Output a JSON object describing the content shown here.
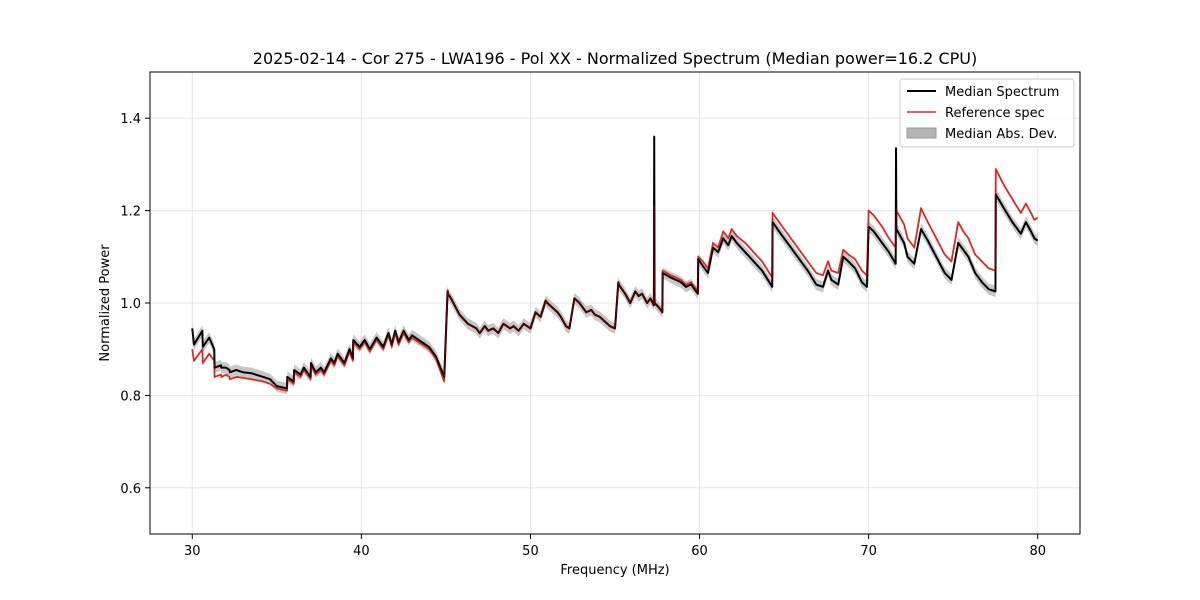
{
  "chart_data": {
    "type": "line",
    "title": "2025-02-14 - Cor 275 - LWA196 - Pol XX - Normalized Spectrum (Median power=16.2 CPU)",
    "xlabel": "Frequency (MHz)",
    "ylabel": "Normalized Power",
    "xlim": [
      27.5,
      82.5
    ],
    "ylim": [
      0.5,
      1.5
    ],
    "xticks": [
      30,
      40,
      50,
      60,
      70,
      80
    ],
    "yticks": [
      0.6,
      0.8,
      1.0,
      1.2,
      1.4
    ],
    "xtick_labels": [
      "30",
      "40",
      "50",
      "60",
      "70",
      "80"
    ],
    "ytick_labels": [
      "0.6",
      "0.8",
      "1.0",
      "1.2",
      "1.4"
    ],
    "grid": true,
    "legend_position": "top-right",
    "legend": [
      "Median Spectrum",
      "Reference spec",
      "Median Abs. Dev."
    ],
    "colors": {
      "median": "#000000",
      "reference": "#f05a5a",
      "mad": "#b4b4b4",
      "grid": "#e6e6e6",
      "axes": "#000000"
    },
    "series": [
      {
        "name": "Median Spectrum",
        "x": [
          30.0,
          30.1,
          30.6,
          30.62,
          31.0,
          31.3,
          31.32,
          31.7,
          31.72,
          32.0,
          32.2,
          32.22,
          32.6,
          33.0,
          33.5,
          34.2,
          34.6,
          35.0,
          35.6,
          35.62,
          36.0,
          36.02,
          36.4,
          36.6,
          37.0,
          37.02,
          37.3,
          37.6,
          37.8,
          38.2,
          38.4,
          38.6,
          39.0,
          39.3,
          39.5,
          39.52,
          39.9,
          40.2,
          40.5,
          40.9,
          41.3,
          41.6,
          41.8,
          42.0,
          42.2,
          42.5,
          42.8,
          43.0,
          43.2,
          43.6,
          44.0,
          44.4,
          44.9,
          45.1,
          45.12,
          45.3,
          45.8,
          46.3,
          46.8,
          47.0,
          47.3,
          47.5,
          47.8,
          48.1,
          48.4,
          48.8,
          49.0,
          49.3,
          49.6,
          50.0,
          50.3,
          50.6,
          50.9,
          51.0,
          51.3,
          51.6,
          51.8,
          52.1,
          52.3,
          52.6,
          52.9,
          53.0,
          53.3,
          53.6,
          53.8,
          54.1,
          54.4,
          54.7,
          55.0,
          55.2,
          55.22,
          55.6,
          55.9,
          56.2,
          56.4,
          56.6,
          56.9,
          57.1,
          57.3,
          57.32,
          57.34,
          57.6,
          57.8,
          57.82,
          58.3,
          58.6,
          58.9,
          59.2,
          59.5,
          59.7,
          59.9,
          59.92,
          60.2,
          60.5,
          60.8,
          61.1,
          61.4,
          61.7,
          61.9,
          62.2,
          62.7,
          63.2,
          63.7,
          64.3,
          64.32,
          64.8,
          65.4,
          65.9,
          66.4,
          66.9,
          67.3,
          67.6,
          67.8,
          68.2,
          68.5,
          68.8,
          69.2,
          69.6,
          69.9,
          70.0,
          70.3,
          70.8,
          71.2,
          71.6,
          71.62,
          71.64,
          72.1,
          72.3,
          72.7,
          73.1,
          73.5,
          74.0,
          74.5,
          74.9,
          75.3,
          75.6,
          75.9,
          76.3,
          76.7,
          77.1,
          77.5,
          77.52,
          78.0,
          78.5,
          79.0,
          79.3,
          79.6,
          79.8,
          80.0
        ],
        "y": [
          0.945,
          0.91,
          0.94,
          0.905,
          0.925,
          0.9,
          0.86,
          0.865,
          0.86,
          0.86,
          0.855,
          0.85,
          0.855,
          0.85,
          0.848,
          0.84,
          0.835,
          0.82,
          0.815,
          0.84,
          0.83,
          0.855,
          0.845,
          0.86,
          0.84,
          0.87,
          0.85,
          0.86,
          0.85,
          0.88,
          0.87,
          0.89,
          0.87,
          0.9,
          0.88,
          0.92,
          0.905,
          0.92,
          0.9,
          0.925,
          0.905,
          0.935,
          0.91,
          0.94,
          0.915,
          0.94,
          0.92,
          0.93,
          0.925,
          0.915,
          0.905,
          0.885,
          0.84,
          1.025,
          1.02,
          1.01,
          0.975,
          0.955,
          0.945,
          0.935,
          0.95,
          0.94,
          0.945,
          0.935,
          0.955,
          0.945,
          0.95,
          0.94,
          0.955,
          0.945,
          0.98,
          0.97,
          1.005,
          1.0,
          0.99,
          0.98,
          0.97,
          0.95,
          0.945,
          1.01,
          1.0,
          0.995,
          0.98,
          0.985,
          0.975,
          0.97,
          0.96,
          0.95,
          0.945,
          1.045,
          1.04,
          1.02,
          1.0,
          1.025,
          1.015,
          1.02,
          1.0,
          1.01,
          0.995,
          1.36,
          1.0,
          0.99,
          0.98,
          1.065,
          1.055,
          1.05,
          1.045,
          1.035,
          1.04,
          1.03,
          1.02,
          1.095,
          1.08,
          1.065,
          1.12,
          1.11,
          1.14,
          1.125,
          1.145,
          1.13,
          1.11,
          1.09,
          1.07,
          1.035,
          1.175,
          1.15,
          1.12,
          1.095,
          1.07,
          1.04,
          1.035,
          1.07,
          1.05,
          1.04,
          1.1,
          1.09,
          1.075,
          1.045,
          1.035,
          1.165,
          1.155,
          1.13,
          1.11,
          1.085,
          1.335,
          1.16,
          1.13,
          1.1,
          1.085,
          1.16,
          1.135,
          1.1,
          1.065,
          1.05,
          1.13,
          1.115,
          1.1,
          1.065,
          1.045,
          1.03,
          1.025,
          1.235,
          1.205,
          1.175,
          1.15,
          1.175,
          1.155,
          1.14,
          1.135
        ]
      },
      {
        "name": "Reference spec",
        "x": [
          30.0,
          30.1,
          30.6,
          30.62,
          31.0,
          31.3,
          31.32,
          31.7,
          31.72,
          32.0,
          32.2,
          32.22,
          32.6,
          33.0,
          33.5,
          34.2,
          34.6,
          35.0,
          35.6,
          35.62,
          36.0,
          36.02,
          36.4,
          36.6,
          37.0,
          37.02,
          37.3,
          37.6,
          37.8,
          38.2,
          38.4,
          38.6,
          39.0,
          39.3,
          39.5,
          39.52,
          39.9,
          40.2,
          40.5,
          40.9,
          41.3,
          41.6,
          41.8,
          42.0,
          42.2,
          42.5,
          42.8,
          43.0,
          43.2,
          43.6,
          44.0,
          44.4,
          44.9,
          45.1,
          45.12,
          45.3,
          45.8,
          46.3,
          46.8,
          47.0,
          47.3,
          47.5,
          47.8,
          48.1,
          48.4,
          48.8,
          49.0,
          49.3,
          49.6,
          50.0,
          50.3,
          50.6,
          50.9,
          51.0,
          51.3,
          51.6,
          51.8,
          52.1,
          52.3,
          52.6,
          52.9,
          53.0,
          53.3,
          53.6,
          53.8,
          54.1,
          54.4,
          54.7,
          55.0,
          55.2,
          55.22,
          55.6,
          55.9,
          56.2,
          56.4,
          56.6,
          56.9,
          57.1,
          57.3,
          57.32,
          57.34,
          57.6,
          57.8,
          57.82,
          58.3,
          58.6,
          58.9,
          59.2,
          59.5,
          59.7,
          59.9,
          59.92,
          60.2,
          60.5,
          60.8,
          61.1,
          61.4,
          61.7,
          61.9,
          62.2,
          62.7,
          63.2,
          63.7,
          64.3,
          64.32,
          64.8,
          65.4,
          65.9,
          66.4,
          66.9,
          67.3,
          67.6,
          67.8,
          68.2,
          68.5,
          68.8,
          69.2,
          69.6,
          69.9,
          70.0,
          70.3,
          70.8,
          71.2,
          71.6,
          71.62,
          71.64,
          72.1,
          72.3,
          72.7,
          73.1,
          73.5,
          74.0,
          74.5,
          74.9,
          75.3,
          75.6,
          75.9,
          76.3,
          76.7,
          77.1,
          77.5,
          77.52,
          78.0,
          78.5,
          79.0,
          79.3,
          79.6,
          79.8,
          80.0
        ],
        "y": [
          0.9,
          0.875,
          0.9,
          0.87,
          0.89,
          0.875,
          0.84,
          0.845,
          0.84,
          0.845,
          0.84,
          0.835,
          0.84,
          0.838,
          0.835,
          0.83,
          0.825,
          0.815,
          0.81,
          0.835,
          0.825,
          0.85,
          0.84,
          0.855,
          0.835,
          0.865,
          0.845,
          0.855,
          0.845,
          0.875,
          0.865,
          0.885,
          0.865,
          0.895,
          0.875,
          0.915,
          0.9,
          0.915,
          0.895,
          0.92,
          0.9,
          0.93,
          0.905,
          0.935,
          0.91,
          0.935,
          0.915,
          0.925,
          0.92,
          0.91,
          0.9,
          0.88,
          0.83,
          1.028,
          1.02,
          1.01,
          0.975,
          0.955,
          0.945,
          0.935,
          0.95,
          0.94,
          0.945,
          0.935,
          0.955,
          0.945,
          0.95,
          0.94,
          0.955,
          0.945,
          0.98,
          0.97,
          1.005,
          1.0,
          0.99,
          0.98,
          0.97,
          0.95,
          0.945,
          1.01,
          1.0,
          0.995,
          0.98,
          0.985,
          0.975,
          0.97,
          0.96,
          0.95,
          0.945,
          1.045,
          1.04,
          1.02,
          1.0,
          1.025,
          1.015,
          1.02,
          1.0,
          1.01,
          0.995,
          1.21,
          1.0,
          0.99,
          0.98,
          1.07,
          1.06,
          1.055,
          1.05,
          1.04,
          1.045,
          1.035,
          1.025,
          1.1,
          1.09,
          1.075,
          1.13,
          1.12,
          1.155,
          1.14,
          1.16,
          1.145,
          1.13,
          1.11,
          1.09,
          1.055,
          1.195,
          1.17,
          1.14,
          1.115,
          1.09,
          1.065,
          1.06,
          1.09,
          1.07,
          1.065,
          1.115,
          1.105,
          1.095,
          1.07,
          1.06,
          1.2,
          1.19,
          1.165,
          1.14,
          1.12,
          1.18,
          1.2,
          1.17,
          1.14,
          1.12,
          1.205,
          1.175,
          1.14,
          1.105,
          1.09,
          1.175,
          1.155,
          1.14,
          1.105,
          1.09,
          1.075,
          1.07,
          1.29,
          1.255,
          1.225,
          1.195,
          1.215,
          1.195,
          1.18,
          1.185
        ]
      }
    ],
    "mad_halfwidth": 0.012
  }
}
